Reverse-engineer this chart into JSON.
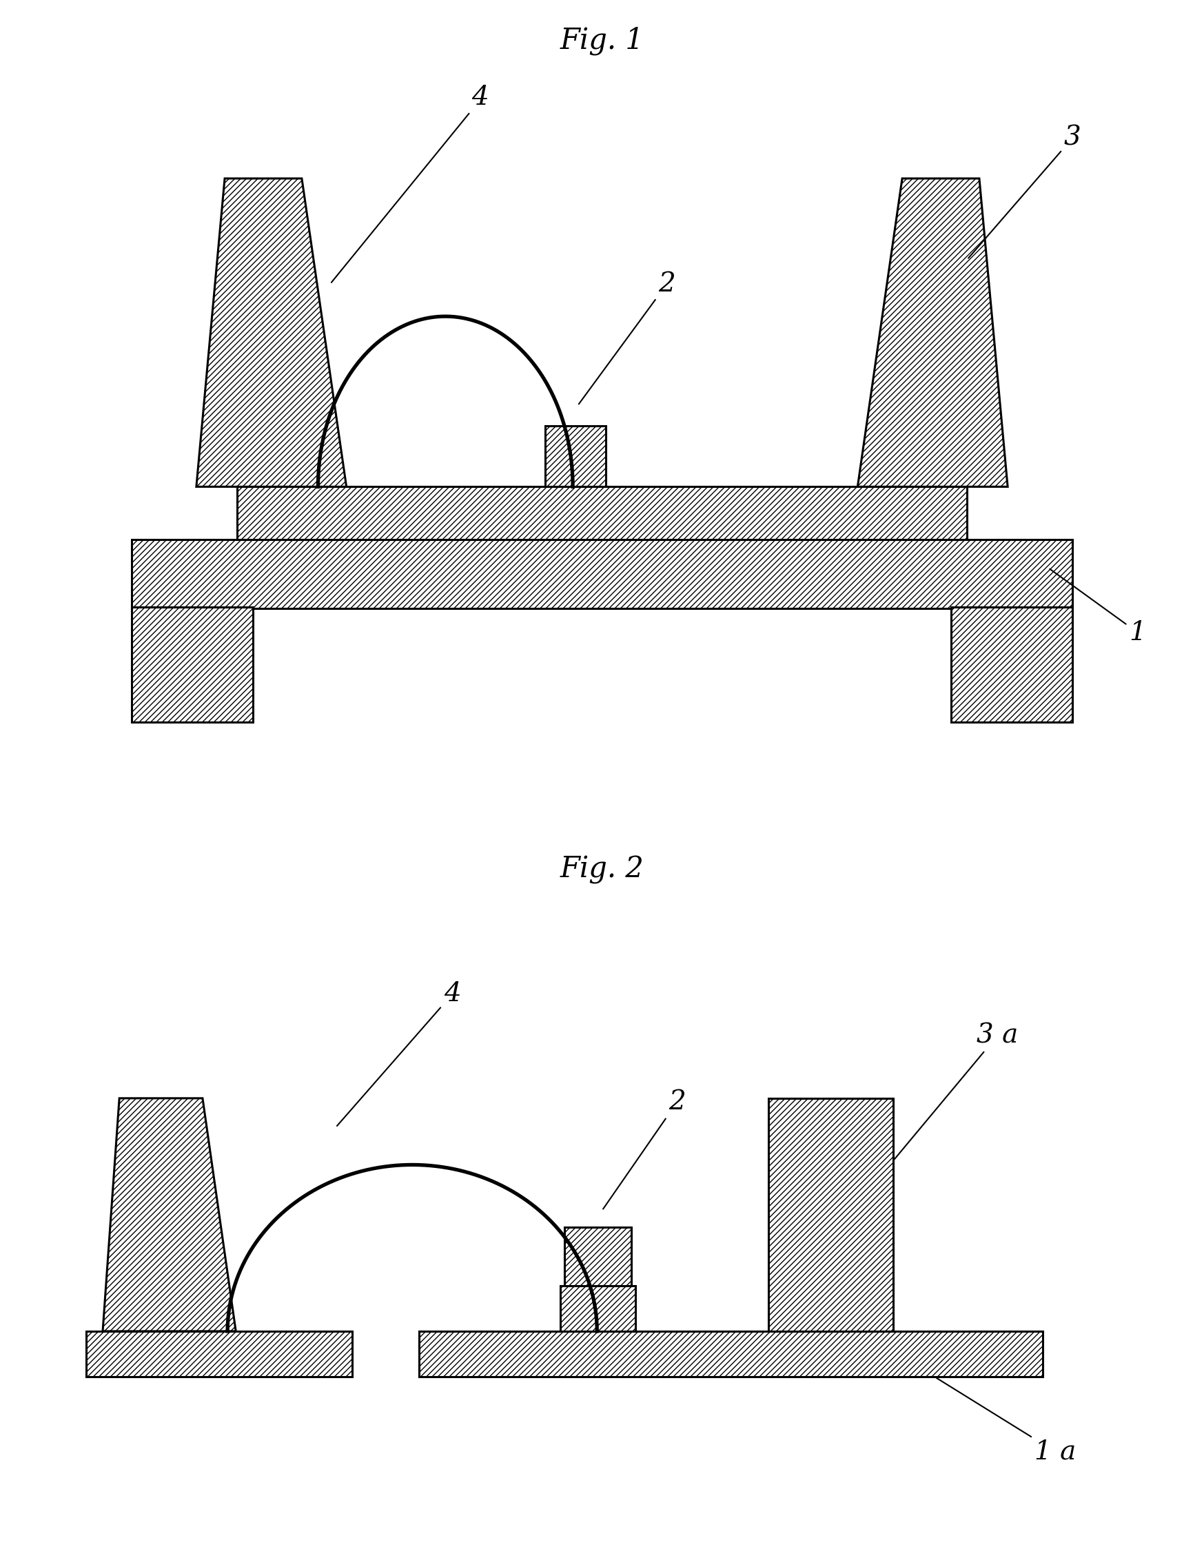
{
  "fig1_title": "Fig. 1",
  "fig2_title": "Fig. 2",
  "background_color": "#ffffff",
  "line_color": "#000000",
  "hatch_pattern": "////",
  "label1": "1",
  "label2": "2",
  "label3": "3",
  "label4": "4",
  "label1a": "1 a",
  "label3a": "3 a",
  "title_fontsize": 30,
  "label_fontsize": 28
}
